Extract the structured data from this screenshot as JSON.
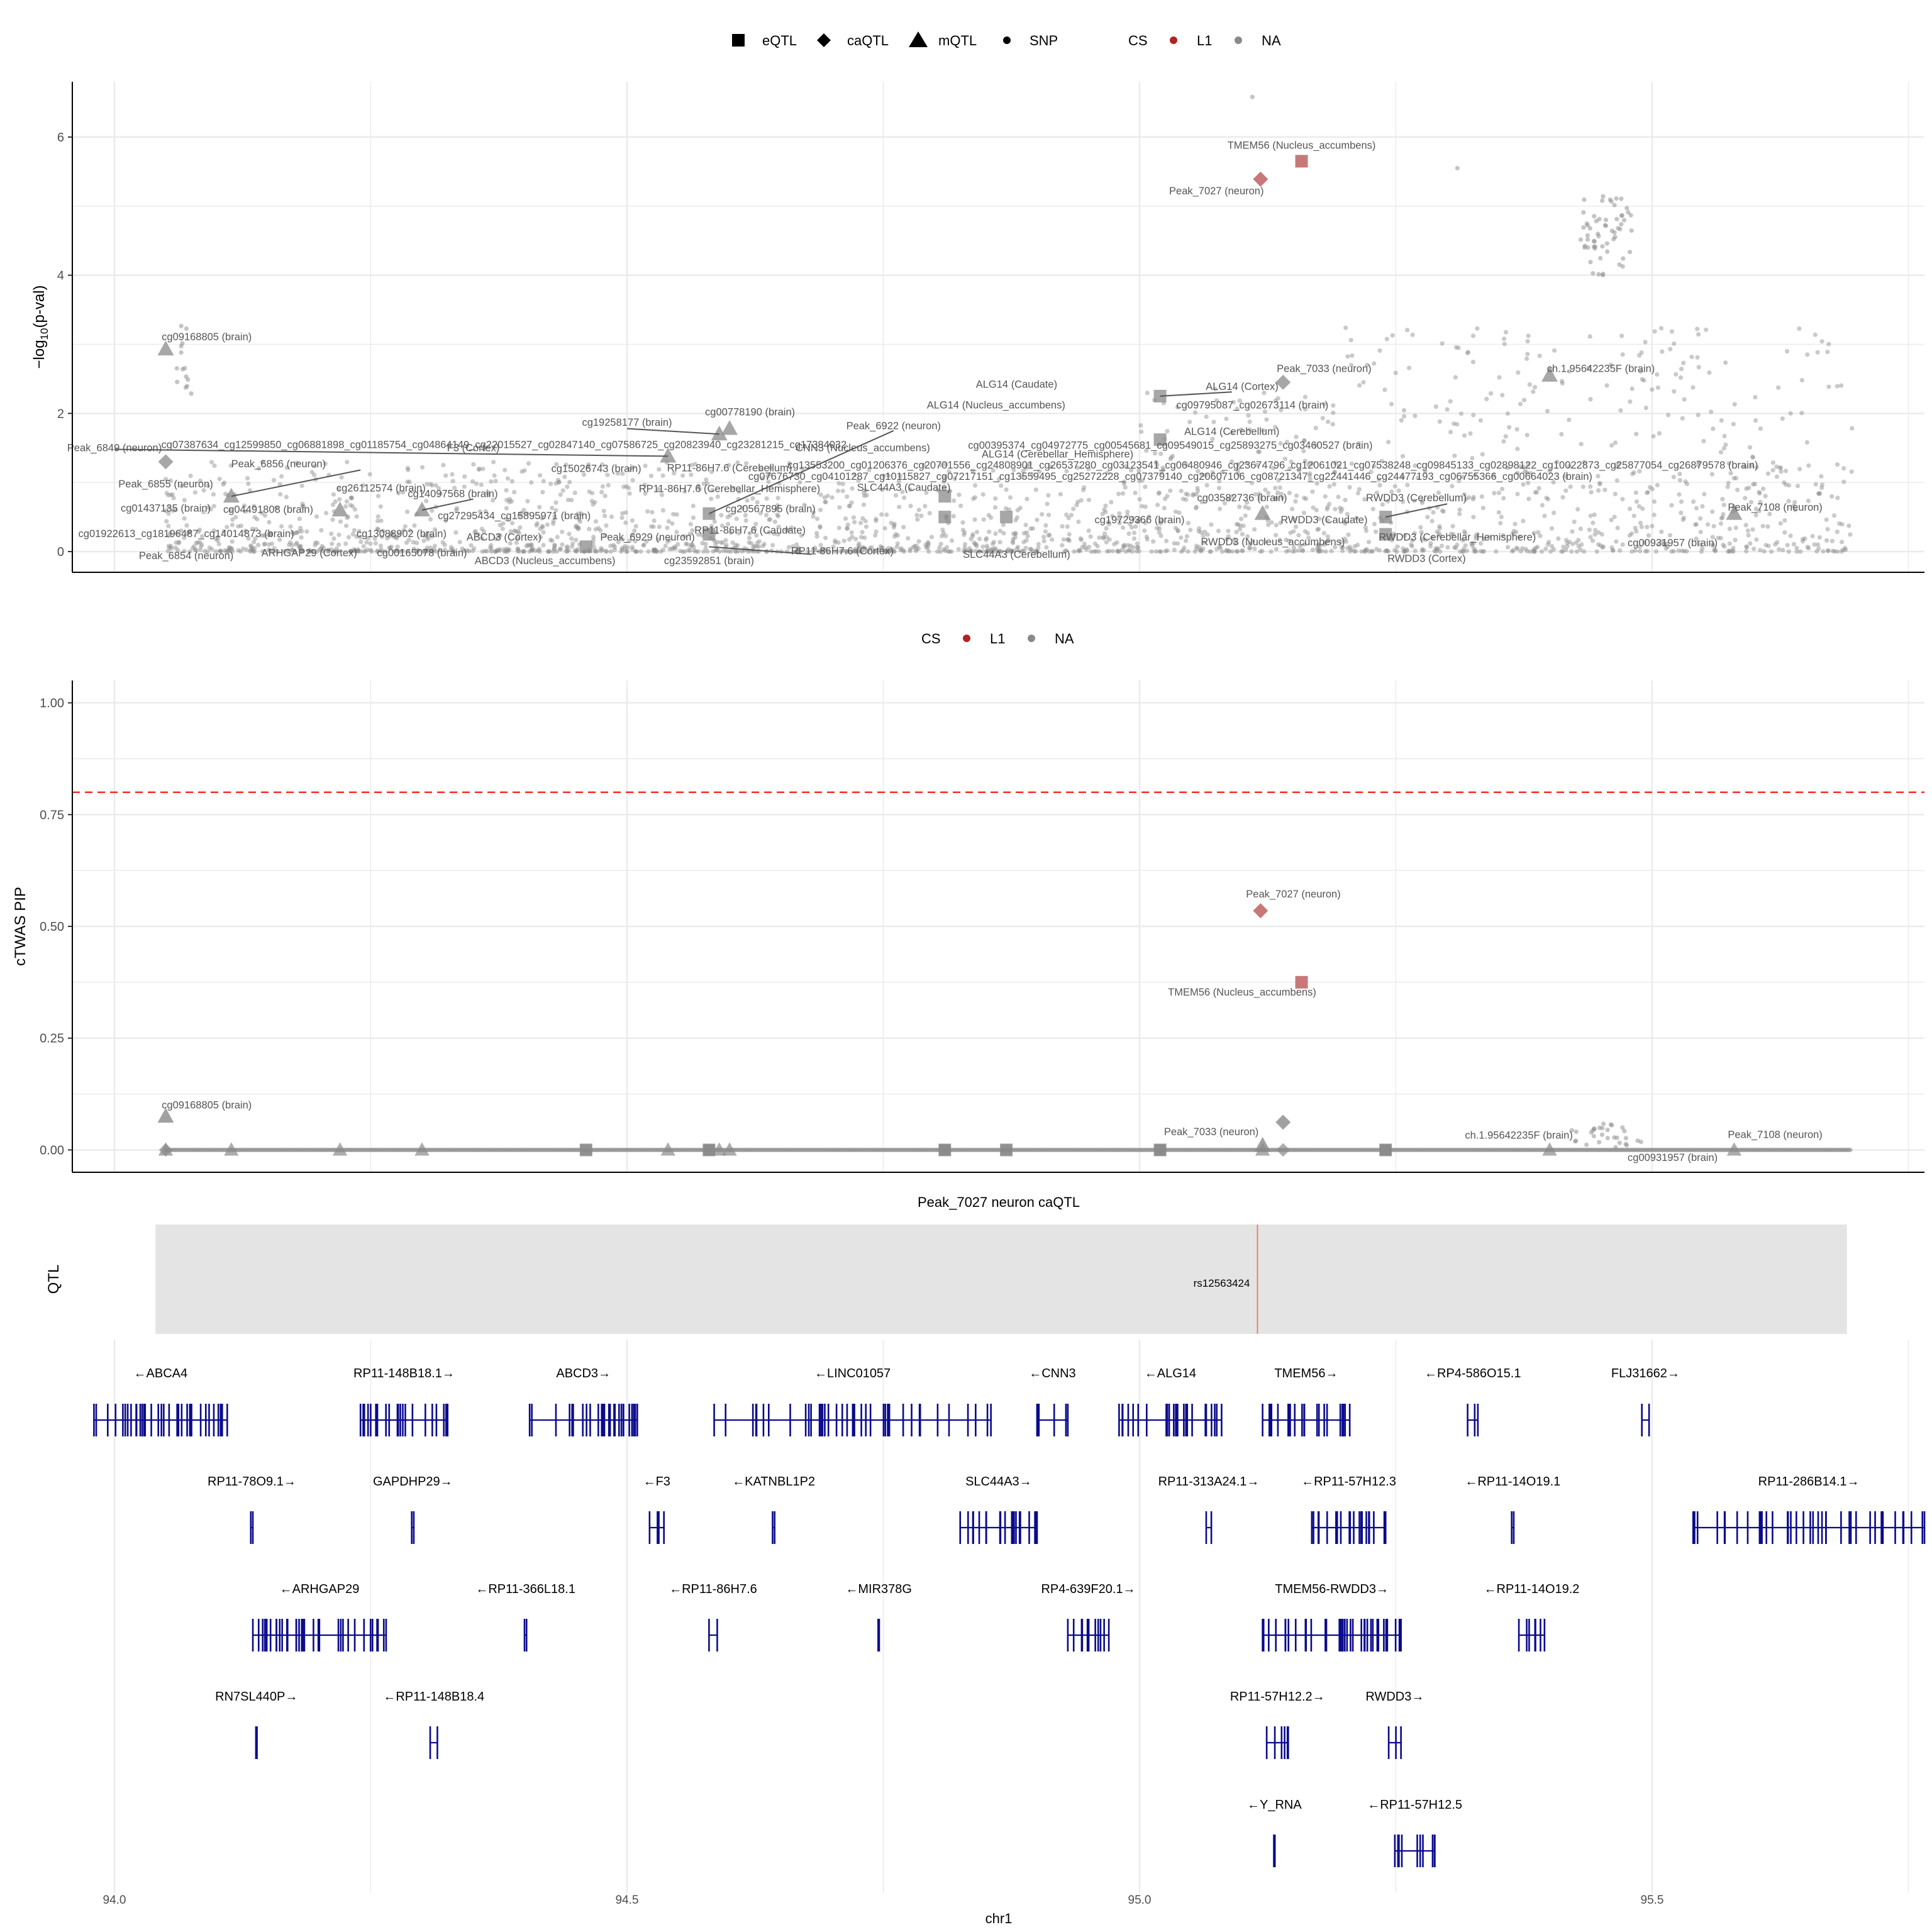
{
  "colors": {
    "l1": "#c87878",
    "na": "#8a8a8a",
    "gene": "#0a0a8c",
    "threshold": "#ff2a2a",
    "grid": "#ebebeb",
    "qtlBand": "#e4e4e4",
    "snpLine": "#f08070"
  },
  "legend_top": {
    "shapes": [
      {
        "name": "eQTL",
        "icon": "square-icon"
      },
      {
        "name": "caQTL",
        "icon": "diamond-icon"
      },
      {
        "name": "mQTL",
        "icon": "triangle-icon"
      },
      {
        "name": "SNP",
        "icon": "dot-icon"
      }
    ],
    "cs_title": "CS",
    "cs": [
      "L1",
      "NA"
    ]
  },
  "legend_mid": {
    "cs_title": "CS",
    "cs": [
      "L1",
      "NA"
    ]
  },
  "chart_data": [
    {
      "type": "scatter",
      "name": "association",
      "ylabel": "-log10(p-val)",
      "xlim": [
        93.96,
        95.77
      ],
      "ylim": [
        -0.3,
        6.8
      ],
      "yticks": [
        0,
        2,
        4,
        6
      ],
      "highlight_points": [
        {
          "x": 95.118,
          "y": 5.39,
          "shape": "diamond",
          "cs": "L1"
        },
        {
          "x": 95.158,
          "y": 5.65,
          "shape": "square",
          "cs": "L1"
        }
      ],
      "qtl_points": [
        {
          "x": 94.05,
          "y": 2.93,
          "shape": "triangle"
        },
        {
          "x": 94.05,
          "y": 1.3,
          "shape": "diamond"
        },
        {
          "x": 94.114,
          "y": 0.8,
          "shape": "triangle"
        },
        {
          "x": 94.22,
          "y": 0.6,
          "shape": "triangle"
        },
        {
          "x": 94.3,
          "y": 0.6,
          "shape": "triangle"
        },
        {
          "x": 94.46,
          "y": 0.07,
          "shape": "square"
        },
        {
          "x": 94.54,
          "y": 1.38,
          "shape": "triangle"
        },
        {
          "x": 94.59,
          "y": 1.7,
          "shape": "triangle"
        },
        {
          "x": 94.6,
          "y": 1.78,
          "shape": "triangle"
        },
        {
          "x": 94.58,
          "y": 0.55,
          "shape": "square"
        },
        {
          "x": 94.58,
          "y": 0.25,
          "shape": "square"
        },
        {
          "x": 94.81,
          "y": 0.8,
          "shape": "square"
        },
        {
          "x": 94.81,
          "y": 0.5,
          "shape": "square"
        },
        {
          "x": 94.87,
          "y": 0.5,
          "shape": "square"
        },
        {
          "x": 95.02,
          "y": 2.25,
          "shape": "square"
        },
        {
          "x": 95.02,
          "y": 1.62,
          "shape": "square"
        },
        {
          "x": 95.12,
          "y": 0.55,
          "shape": "triangle"
        },
        {
          "x": 95.14,
          "y": 2.45,
          "shape": "diamond"
        },
        {
          "x": 95.24,
          "y": 0.5,
          "shape": "square"
        },
        {
          "x": 95.24,
          "y": 0.25,
          "shape": "square"
        },
        {
          "x": 95.4,
          "y": 2.55,
          "shape": "triangle"
        },
        {
          "x": 95.58,
          "y": 0.55,
          "shape": "triangle"
        }
      ],
      "labels": [
        {
          "text": "TMEM56 (Nucleus_accumbens)",
          "x": 95.158,
          "y": 5.83
        },
        {
          "text": "Peak_7027 (neuron)",
          "x": 95.075,
          "y": 5.17
        },
        {
          "text": "cg09168805 (brain)",
          "x": 94.09,
          "y": 3.06
        },
        {
          "text": "Peak_7033 (neuron)",
          "x": 95.18,
          "y": 2.6
        },
        {
          "text": "ch.1.95642235F (brain)",
          "x": 95.45,
          "y": 2.6
        },
        {
          "text": "ALG14 (Caudate)",
          "x": 94.88,
          "y": 2.37
        },
        {
          "text": "ALG14 (Cortex)",
          "x": 95.1,
          "y": 2.34
        },
        {
          "text": "ALG14 (Nucleus_accumbens)",
          "x": 94.86,
          "y": 2.07
        },
        {
          "text": "cg09795087_cg02673114 (brain)",
          "x": 95.11,
          "y": 2.07
        },
        {
          "text": "cg00778190 (brain)",
          "x": 94.62,
          "y": 1.97
        },
        {
          "text": "cg19258177 (brain)",
          "x": 94.5,
          "y": 1.82
        },
        {
          "text": "Peak_6922 (neuron)",
          "x": 94.76,
          "y": 1.77
        },
        {
          "text": "ALG14 (Cerebellum)",
          "x": 95.09,
          "y": 1.69
        },
        {
          "text": "cg07387634_cg12599850_cg06881898_cg01185754_cg04864149_cg22015527_cg02847140_cg07586725_cg20823940_cg23281215_cg17384032",
          "x": 94.38,
          "y": 1.5
        },
        {
          "text": "Peak_6849 (neuron)",
          "x": 94.0,
          "y": 1.45
        },
        {
          "text": "F3 (Cortex)",
          "x": 94.35,
          "y": 1.45
        },
        {
          "text": "CNN3 (Nucleus_accumbens)",
          "x": 94.73,
          "y": 1.45
        },
        {
          "text": "cg00395374_cg04972775_cg00545681_cg09549015_cg25893275_cg03460527 (brain)",
          "x": 95.03,
          "y": 1.49
        },
        {
          "text": "ALG14 (Cerebellar_Hemisphere)",
          "x": 94.92,
          "y": 1.36
        },
        {
          "text": "Peak_6856 (neuron)",
          "x": 94.16,
          "y": 1.22
        },
        {
          "text": "cg15026743 (brain)",
          "x": 94.47,
          "y": 1.15
        },
        {
          "text": "RP11-86H7.6 (Cerebellum)",
          "x": 94.6,
          "y": 1.16
        },
        {
          "text": "cg13553200_cg01206376_cg20701556_cg24808901_cg26537280_cg03123541_cg06480946_cg23674796_cg12061021_cg07538248_cg09845133_cg02898122_cg10022873_cg25877054_cg26879578 (brain)",
          "x": 95.13,
          "y": 1.2
        },
        {
          "text": "cg07676730_cg04101287_cg10115827_cg07217151_cg13559495_cg25272228_cg07379140_cg20607106_cg08721347_cg22441446_cg24477193_cg06755366_cg00664023 (brain)",
          "x": 95.03,
          "y": 1.04
        },
        {
          "text": "Peak_6855 (neuron)",
          "x": 94.05,
          "y": 0.93
        },
        {
          "text": "RP11-86H7.6 (Cerebellar_Hemisphere)",
          "x": 94.6,
          "y": 0.86
        },
        {
          "text": "SLC44A3 (Caudate)",
          "x": 94.77,
          "y": 0.88
        },
        {
          "text": "cg26112574 (brain)",
          "x": 94.26,
          "y": 0.87
        },
        {
          "text": "cg14097568 (brain)",
          "x": 94.33,
          "y": 0.79
        },
        {
          "text": "RWDD3 (Cerebellum)",
          "x": 95.27,
          "y": 0.73
        },
        {
          "text": "cg03582736 (brain)",
          "x": 95.1,
          "y": 0.73
        },
        {
          "text": "cg01437135 (brain)",
          "x": 94.05,
          "y": 0.58
        },
        {
          "text": "cg04491808 (brain)",
          "x": 94.15,
          "y": 0.56
        },
        {
          "text": "cg20567895 (brain)",
          "x": 94.64,
          "y": 0.57
        },
        {
          "text": "Peak_7108 (neuron)",
          "x": 95.62,
          "y": 0.59
        },
        {
          "text": "cg27295434_cg15895971 (brain)",
          "x": 94.39,
          "y": 0.47
        },
        {
          "text": "cg19729366 (brain)",
          "x": 95.0,
          "y": 0.41
        },
        {
          "text": "RWDD3 (Caudate)",
          "x": 95.18,
          "y": 0.41
        },
        {
          "text": "cg01922613_cg18196487_cg14014873 (brain)",
          "x": 94.07,
          "y": 0.21
        },
        {
          "text": "cg13088902 (brain)",
          "x": 94.28,
          "y": 0.21
        },
        {
          "text": "ABCD3 (Cortex)",
          "x": 94.38,
          "y": 0.16
        },
        {
          "text": "Peak_6929 (neuron)",
          "x": 94.52,
          "y": 0.16
        },
        {
          "text": "RP11-86H7.6 (Caudate)",
          "x": 94.62,
          "y": 0.26
        },
        {
          "text": "RWDD3 (Cerebellar_Hemisphere)",
          "x": 95.31,
          "y": 0.16
        },
        {
          "text": "RWDD3 (Nucleus_accumbens)",
          "x": 95.13,
          "y": 0.09
        },
        {
          "text": "cg00931957 (brain)",
          "x": 95.52,
          "y": 0.08
        },
        {
          "text": "ARHGAP29 (Cortex)",
          "x": 94.19,
          "y": -0.07
        },
        {
          "text": "cg00165078 (brain)",
          "x": 94.3,
          "y": -0.07
        },
        {
          "text": "Peak_6854 (neuron)",
          "x": 94.07,
          "y": -0.11
        },
        {
          "text": "RP11-86H7.6 (Cortex)",
          "x": 94.71,
          "y": -0.04
        },
        {
          "text": "SLC44A3 (Cerebellum)",
          "x": 94.88,
          "y": -0.09
        },
        {
          "text": "ABCD3 (Nucleus_accumbens)",
          "x": 94.42,
          "y": -0.18
        },
        {
          "text": "cg23592851 (brain)",
          "x": 94.58,
          "y": -0.18
        },
        {
          "text": "RWDD3 (Cortex)",
          "x": 95.28,
          "y": -0.15
        }
      ]
    },
    {
      "type": "scatter",
      "name": "cTWAS",
      "ylabel": "cTWAS PIP",
      "xlim": [
        93.96,
        95.77
      ],
      "ylim": [
        -0.05,
        1.05
      ],
      "yticks": [
        0.0,
        0.25,
        0.5,
        0.75,
        1.0
      ],
      "ytick_labels": [
        "0.00",
        "0.25",
        "0.50",
        "0.75",
        "1.00"
      ],
      "threshold": 0.8,
      "points": [
        {
          "x": 95.118,
          "y": 0.535,
          "shape": "diamond",
          "cs": "L1"
        },
        {
          "x": 95.158,
          "y": 0.375,
          "shape": "square",
          "cs": "L1"
        },
        {
          "x": 94.05,
          "y": 0.075,
          "shape": "triangle",
          "cs": "NA"
        },
        {
          "x": 95.14,
          "y": 0.062,
          "shape": "diamond",
          "cs": "NA"
        },
        {
          "x": 95.12,
          "y": 0.01,
          "shape": "triangle",
          "cs": "NA"
        },
        {
          "x": 94.46,
          "y": 0.0,
          "shape": "square",
          "cs": "NA"
        },
        {
          "x": 94.58,
          "y": 0.0,
          "shape": "square",
          "cs": "NA"
        },
        {
          "x": 94.81,
          "y": 0.0,
          "shape": "square",
          "cs": "NA"
        },
        {
          "x": 94.87,
          "y": 0.0,
          "shape": "square",
          "cs": "NA"
        },
        {
          "x": 95.02,
          "y": 0.0,
          "shape": "square",
          "cs": "NA"
        },
        {
          "x": 95.24,
          "y": 0.0,
          "shape": "square",
          "cs": "NA"
        }
      ],
      "labels": [
        {
          "text": "Peak_7027 (neuron)",
          "x": 95.15,
          "y": 0.565
        },
        {
          "text": "TMEM56 (Nucleus_accumbens)",
          "x": 95.1,
          "y": 0.345
        },
        {
          "text": "cg09168805 (brain)",
          "x": 94.09,
          "y": 0.093
        },
        {
          "text": "Peak_7033 (neuron)",
          "x": 95.07,
          "y": 0.033
        },
        {
          "text": "ch.1.95642235F (brain)",
          "x": 95.37,
          "y": 0.025
        },
        {
          "text": "Peak_7108 (neuron)",
          "x": 95.62,
          "y": 0.027
        },
        {
          "text": "cg00931957 (brain)",
          "x": 95.52,
          "y": -0.025
        }
      ]
    }
  ],
  "qtl_track": {
    "title": "Peak_7027 neuron caQTL",
    "ylabel": "QTL",
    "snp": "rs12563424",
    "snp_x": 95.115,
    "range": [
      94.04,
      95.69
    ]
  },
  "genes": {
    "xlabel": "chr1",
    "xticks": [
      94.0,
      94.5,
      95.0,
      95.5
    ],
    "xtick_labels": [
      "94.0",
      "94.5",
      "95.0",
      "95.5"
    ],
    "rows": [
      [
        {
          "name": "←ABCA4",
          "start": 93.98,
          "end": 94.11
        },
        {
          "name": "RP11-148B18.1→",
          "start": 94.24,
          "end": 94.325
        },
        {
          "name": "ABCD3→",
          "start": 94.405,
          "end": 94.51
        },
        {
          "name": "←LINC01057",
          "start": 94.585,
          "end": 94.855
        },
        {
          "name": "←CNN3",
          "start": 94.9,
          "end": 94.93
        },
        {
          "name": "←ALG14",
          "start": 94.98,
          "end": 95.08
        },
        {
          "name": "TMEM56→",
          "start": 95.12,
          "end": 95.205
        },
        {
          "name": "←RP4-586O15.1",
          "start": 95.32,
          "end": 95.33
        },
        {
          "name": "FLJ31662→",
          "start": 95.49,
          "end": 95.497
        }
      ],
      [
        {
          "name": "RP11-78O9.1→",
          "start": 94.133,
          "end": 94.135
        },
        {
          "name": "GAPDHP29→",
          "start": 94.29,
          "end": 94.292
        },
        {
          "name": "←F3",
          "start": 94.522,
          "end": 94.536
        },
        {
          "name": "←KATNBL1P2",
          "start": 94.642,
          "end": 94.644
        },
        {
          "name": "SLC44A3→",
          "start": 94.825,
          "end": 94.9
        },
        {
          "name": "RP11-313A24.1→",
          "start": 95.065,
          "end": 95.07
        },
        {
          "name": "←RP11-57H12.3",
          "start": 95.168,
          "end": 95.24
        },
        {
          "name": "←RP11-14O19.1",
          "start": 95.363,
          "end": 95.365
        },
        {
          "name": "RP11-286B14.1→",
          "start": 95.54,
          "end": 95.77
        }
      ],
      [
        {
          "name": "←ARHGAP29",
          "start": 94.135,
          "end": 94.265
        },
        {
          "name": "←RP11-366L18.1",
          "start": 94.4,
          "end": 94.402
        },
        {
          "name": "←RP11-86H7.6",
          "start": 94.58,
          "end": 94.588
        },
        {
          "name": "←MIR378G",
          "start": 94.745,
          "end": 94.746
        },
        {
          "name": "RP4-639F20.1→",
          "start": 94.93,
          "end": 94.97
        },
        {
          "name": "TMEM56-RWDD3→",
          "start": 95.12,
          "end": 95.255
        },
        {
          "name": "←RP11-14O19.2",
          "start": 95.37,
          "end": 95.395
        }
      ],
      [
        {
          "name": "RN7SL440P→",
          "start": 94.138,
          "end": 94.139
        },
        {
          "name": "←RP11-148B18.4",
          "start": 94.308,
          "end": 94.315
        },
        {
          "name": "RP11-57H12.2→",
          "start": 95.124,
          "end": 95.145
        },
        {
          "name": "RWDD3→",
          "start": 95.243,
          "end": 95.255
        }
      ],
      [
        {
          "name": "←Y_RNA",
          "start": 95.131,
          "end": 95.132
        },
        {
          "name": "←RP11-57H12.5",
          "start": 95.249,
          "end": 95.288
        }
      ]
    ]
  }
}
